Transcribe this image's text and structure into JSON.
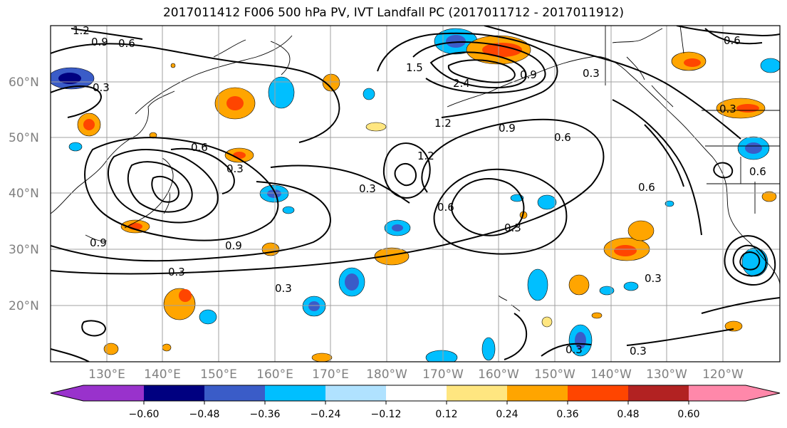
{
  "figure": {
    "title": "2017011412 F006 500 hPa PV, IVT Landfall PC (2017011712 - 2017011912)"
  },
  "axes": {
    "lat_labels": [
      "60°N",
      "50°N",
      "40°N",
      "30°N",
      "20°N"
    ],
    "lon_labels": [
      "130°E",
      "140°E",
      "150°E",
      "160°E",
      "170°E",
      "180°W",
      "170°W",
      "160°W",
      "150°W",
      "140°W",
      "130°W",
      "120°W"
    ],
    "grid_color": "#a0a0a0"
  },
  "colorbar": {
    "tick_labels": [
      "−0.60",
      "−0.48",
      "−0.36",
      "−0.24",
      "−0.12",
      "0.12",
      "0.24",
      "0.36",
      "0.48",
      "0.60"
    ],
    "colors": [
      "#9932cc",
      "#000080",
      "#3a5cc8",
      "#00bfff",
      "#b0e2ff",
      "#ffffff",
      "#ffe680",
      "#ffa500",
      "#ff4500",
      "#b22222",
      "#ff88aa"
    ]
  },
  "contour_labels": [
    "1.2",
    "0.9",
    "0.6",
    "0.3",
    "0.3",
    "1.5",
    "2.4",
    "1.2",
    "0.9",
    "0.6",
    "0.3",
    "0.6",
    "0.3",
    "0.6",
    "0.9",
    "0.3",
    "0.9",
    "0.3",
    "0.3",
    "0.3",
    "0.3",
    "0.3",
    "0.6",
    "0.6",
    "0.3",
    "0.6",
    "1.2",
    "0.9"
  ]
}
